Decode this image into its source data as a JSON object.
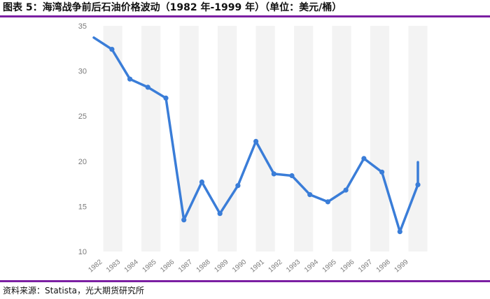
{
  "header": {
    "title": "图表 5：海湾战争前后石油价格波动（1982 年-1999 年）（单位：美元/桶）"
  },
  "footer": {
    "source": "资料来源：Statista，光大期货研究所"
  },
  "colors": {
    "accent_rule": "#7b1fa2",
    "line": "#3a7dd8",
    "band": "#f3f3f3"
  },
  "chart_data": {
    "type": "line",
    "categories": [
      "1982",
      "1983",
      "1984",
      "1985",
      "1986",
      "1987",
      "1988",
      "1989",
      "1990",
      "1991",
      "1992",
      "1993",
      "1994",
      "1995",
      "1996",
      "1997",
      "1998",
      "1999"
    ],
    "series": [
      {
        "values": [
          32.4,
          29.1,
          28.2,
          27.0,
          13.5,
          17.7,
          14.2,
          17.3,
          22.2,
          18.6,
          18.4,
          16.3,
          15.5,
          16.8,
          20.3,
          18.8,
          12.2,
          17.4
        ]
      }
    ],
    "yticks": [
      10,
      15,
      20,
      25,
      30,
      35
    ],
    "ylim": [
      10,
      35
    ],
    "xlabel": "",
    "ylabel": "",
    "title": "",
    "grid": false,
    "alternating_bands": true,
    "line_extends_beyond_edges": true,
    "edge_values": {
      "left": 33.7,
      "right": 19.9
    }
  }
}
